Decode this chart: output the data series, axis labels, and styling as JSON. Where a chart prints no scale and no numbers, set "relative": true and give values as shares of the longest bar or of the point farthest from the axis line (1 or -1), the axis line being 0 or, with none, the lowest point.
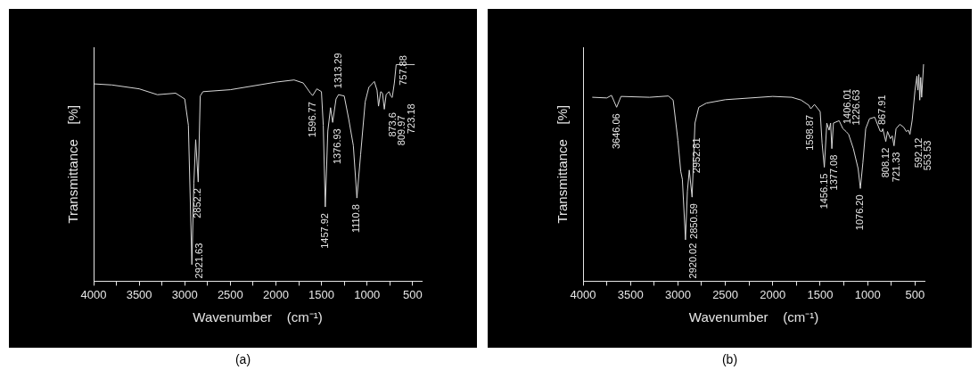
{
  "chart_data": [
    {
      "type": "line",
      "xlabel": "Wavenumber    (cm⁻¹)",
      "ylabel": "Transmittance    [%]",
      "relative": true,
      "tick_labels": "x",
      "xlim": [
        4000,
        400
      ],
      "xticks": [
        4000,
        {
          "value": 3750,
          "label": null
        },
        3500,
        {
          "value": 3250,
          "label": null
        },
        3000,
        {
          "value": 2750,
          "label": null
        },
        2500,
        {
          "value": 2250,
          "label": null
        },
        2000,
        {
          "value": 1750,
          "label": null
        },
        1500,
        {
          "value": 1250,
          "label": null
        },
        1000,
        {
          "value": 750,
          "label": null
        },
        500
      ],
      "x": [
        4000,
        3800,
        3500,
        3300,
        3100,
        3000,
        2960,
        2921.63,
        2900,
        2880,
        2852.2,
        2830,
        2800,
        2500,
        2000,
        1800,
        1700,
        1620,
        1596.77,
        1550,
        1500,
        1480,
        1457.92,
        1430,
        1400,
        1376.93,
        1340,
        1313.29,
        1250,
        1200,
        1150,
        1110.8,
        1070,
        1020,
        980,
        920,
        890,
        873.6,
        850,
        830,
        809.97,
        790,
        757.88,
        740,
        723.18,
        700,
        680,
        480
      ],
      "series": [
        {
          "color": "#d8d8d8",
          "values": [
            0.911,
            0.906,
            0.888,
            0.861,
            0.868,
            0.841,
            0.72,
            0.077,
            0.451,
            0.653,
            0.458,
            0.855,
            0.875,
            0.884,
            0.919,
            0.929,
            0.915,
            0.868,
            0.857,
            0.888,
            0.875,
            0.72,
            0.343,
            0.693,
            0.801,
            0.733,
            0.841,
            0.861,
            0.855,
            0.747,
            0.626,
            0.384,
            0.585,
            0.828,
            0.895,
            0.922,
            0.882,
            0.808,
            0.875,
            0.868,
            0.794,
            0.861,
            0.875,
            0.855,
            0.848,
            0.915,
            1,
            1
          ]
        }
      ],
      "annotations": [
        {
          "text": "2921.63",
          "x": 2921.63,
          "y": 0.077
        },
        {
          "text": "2852.2",
          "x": 2852.2,
          "y": 0.458
        },
        {
          "text": "1596.77",
          "x": 1596.77,
          "y": 0.857
        },
        {
          "text": "1457.92",
          "x": 1457.92,
          "y": 0.343
        },
        {
          "text": "1376.93",
          "x": 1376.93,
          "y": 0.733
        },
        {
          "text": "1313.29",
          "x": 1313.29,
          "y": 0.861
        },
        {
          "text": "1110.8",
          "x": 1110.8,
          "y": 0.384
        },
        {
          "text": "873.6",
          "x": 873.6,
          "y": 0.808
        },
        {
          "text": "809.97",
          "x": 809.97,
          "y": 0.794
        },
        {
          "text": "757.88",
          "x": 757.88,
          "y": 0.875
        },
        {
          "text": "723.18",
          "x": 723.18,
          "y": 0.848
        },
        "(a)"
      ]
    },
    {
      "type": "line",
      "xlabel": "Wavenumber    (cm⁻¹)",
      "ylabel": "Transmittance    [%]",
      "relative": true,
      "tick_labels": "x",
      "xlim": [
        4000,
        400
      ],
      "xticks": [
        4000,
        {
          "value": 3750,
          "label": null
        },
        3500,
        {
          "value": 3250,
          "label": null
        },
        3000,
        {
          "value": 2750,
          "label": null
        },
        2500,
        {
          "value": 2250,
          "label": null
        },
        2000,
        {
          "value": 1750,
          "label": null
        },
        1500,
        {
          "value": 1250,
          "label": null
        },
        1000,
        {
          "value": 750,
          "label": null
        },
        500
      ],
      "x": [
        3900,
        3750,
        3700,
        3646.06,
        3600,
        3300,
        3100,
        3050,
        3000,
        2970,
        2952.81,
        2920.02,
        2900,
        2880,
        2850.59,
        2820,
        2780,
        2700,
        2500,
        2000,
        1800,
        1700,
        1620,
        1598.87,
        1560,
        1500,
        1480,
        1456.15,
        1430,
        1406.01,
        1390,
        1377.08,
        1360,
        1300,
        1260,
        1226.63,
        1200,
        1150,
        1100,
        1076.2,
        1050,
        1020,
        980,
        925,
        867.91,
        850,
        840,
        808.12,
        790,
        760,
        740,
        721.33,
        700,
        660,
        620,
        592.12,
        570,
        553.53,
        530,
        500,
        480,
        470,
        460,
        450,
        440,
        430,
        410
      ],
      "series": [
        {
          "color": "#d8d8d8",
          "values": [
            0.849,
            0.846,
            0.858,
            0.803,
            0.853,
            0.849,
            0.855,
            0.836,
            0.651,
            0.507,
            0.47,
            0.191,
            0.414,
            0.513,
            0.388,
            0.73,
            0.803,
            0.822,
            0.838,
            0.853,
            0.849,
            0.836,
            0.812,
            0.796,
            0.816,
            0.783,
            0.638,
            0.526,
            0.73,
            0.697,
            0.73,
            0.612,
            0.73,
            0.741,
            0.704,
            0.691,
            0.678,
            0.612,
            0.52,
            0.428,
            0.546,
            0.704,
            0.75,
            0.757,
            0.693,
            0.691,
            0.704,
            0.645,
            0.691,
            0.658,
            0.671,
            0.625,
            0.704,
            0.724,
            0.711,
            0.691,
            0.697,
            0.678,
            0.743,
            0.882,
            0.947,
            0.882,
            0.954,
            0.836,
            0.941,
            0.849,
            1
          ]
        }
      ],
      "annotations": [
        {
          "text": "3646.06",
          "x": 3646.06,
          "y": 0.803
        },
        {
          "text": "2952.81",
          "x": 2952.81,
          "y": 0.47
        },
        {
          "text": "2920.02",
          "x": 2920.02,
          "y": 0.191
        },
        {
          "text": "2850.59",
          "x": 2850.59,
          "y": 0.388
        },
        {
          "text": "1598.87",
          "x": 1598.87,
          "y": 0.796
        },
        {
          "text": "1456.15",
          "x": 1456.15,
          "y": 0.526
        },
        {
          "text": "1406.01",
          "x": 1406.01,
          "y": 0.697
        },
        {
          "text": "1377.08",
          "x": 1377.08,
          "y": 0.612
        },
        {
          "text": "1226.63",
          "x": 1226.63,
          "y": 0.691
        },
        {
          "text": "1076.20",
          "x": 1076.2,
          "y": 0.428
        },
        {
          "text": "867.91",
          "x": 867.91,
          "y": 0.693
        },
        {
          "text": "808.12",
          "x": 808.12,
          "y": 0.645
        },
        {
          "text": "721.33",
          "x": 721.33,
          "y": 0.625
        },
        {
          "text": "592.12",
          "x": 592.12,
          "y": 0.691
        },
        {
          "text": "553.53",
          "x": 553.53,
          "y": 0.678
        },
        "(b)"
      ]
    }
  ]
}
